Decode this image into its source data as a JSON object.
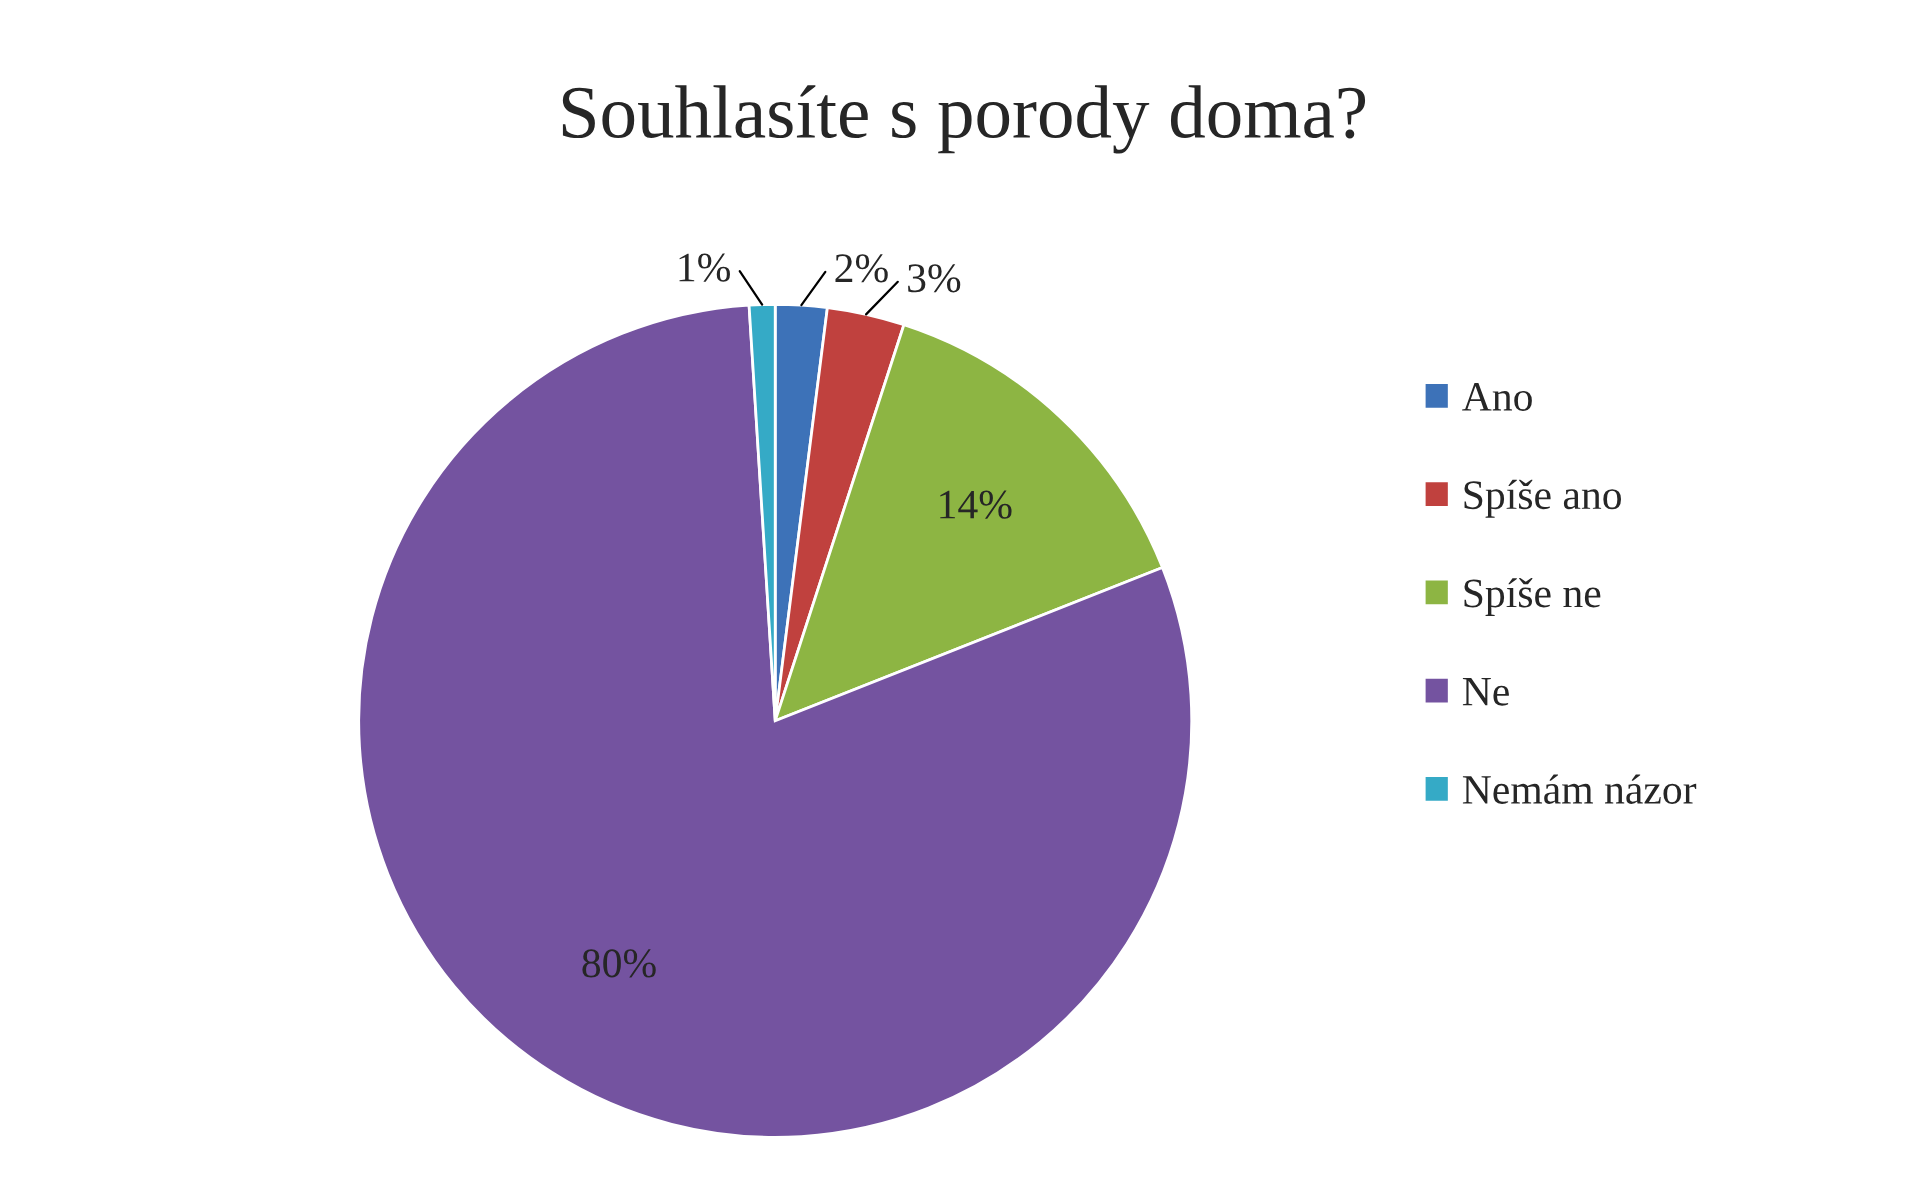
{
  "chart_data": {
    "type": "pie",
    "title": "Souhlasíte s porody doma?",
    "categories": [
      "Ano",
      "Spíše ano",
      "Spíše ne",
      "Ne",
      "Nemám názor"
    ],
    "values": [
      2,
      3,
      14,
      80,
      1
    ],
    "colors": [
      "#3d72b8",
      "#c0413e",
      "#8db543",
      "#7453a0",
      "#35aac6"
    ],
    "value_labels": [
      "2%",
      "3%",
      "14%",
      "80%",
      "1%"
    ],
    "legend": "right"
  }
}
